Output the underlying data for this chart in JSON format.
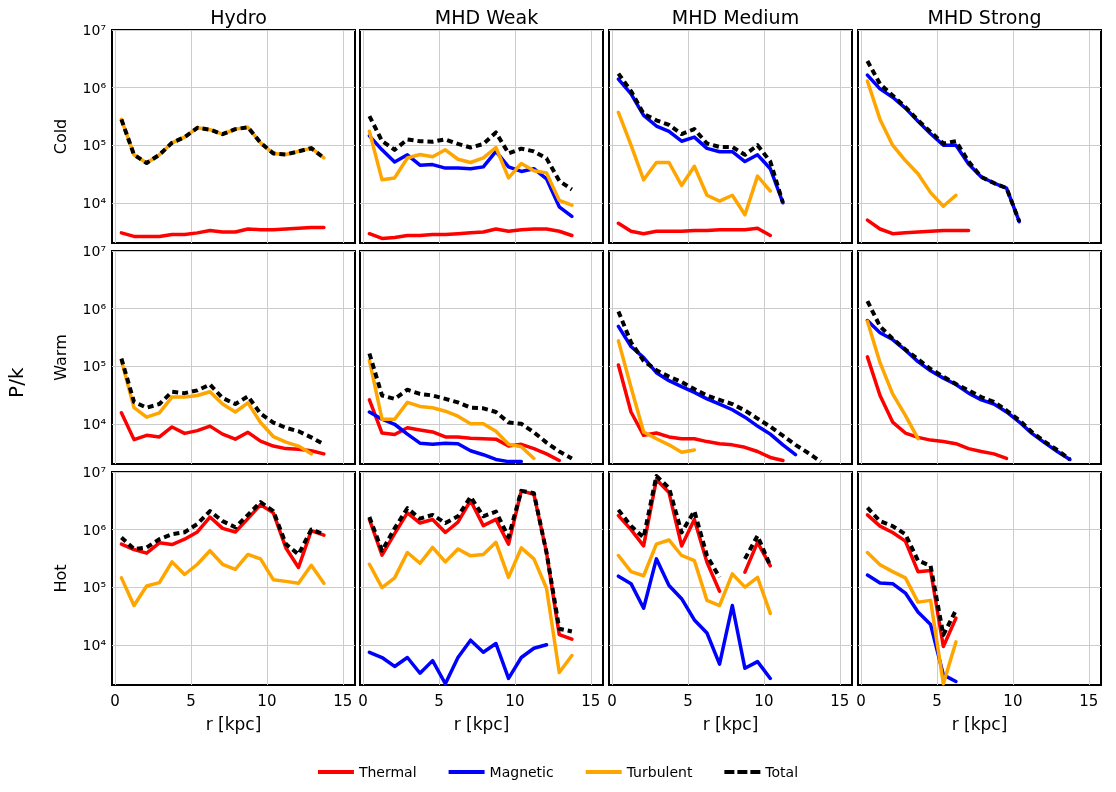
{
  "chart_data": [
    {
      "type": "line",
      "title": "Hydro",
      "ylabel": "Cold",
      "tick_labels": "y",
      "marker": "none",
      "log": true,
      "grid": true,
      "x": [
        0.42,
        1.25,
        2.08,
        2.92,
        3.75,
        4.58,
        5.42,
        6.25,
        7.08,
        7.92,
        8.75,
        9.58,
        10.42,
        11.25,
        12.08,
        12.92,
        13.75
      ],
      "xlim": [
        -0.2,
        15.8
      ],
      "xticks": [
        {
          "value": 0,
          "label": null
        },
        {
          "value": 5,
          "label": null
        },
        {
          "value": 10,
          "label": null
        },
        {
          "value": 15,
          "label": null
        }
      ],
      "ylim": [
        2000,
        10000000
      ],
      "yticks": [
        {
          "value": 10000,
          "label": "10⁴"
        },
        {
          "value": 100000,
          "label": "10⁵"
        },
        {
          "value": 1000000,
          "label": "10⁶"
        },
        {
          "value": 10000000,
          "label": "10⁷"
        }
      ],
      "series": [
        {
          "color": "#ff0000",
          "values": [
            3000,
            2600,
            2600,
            2600,
            2800,
            2800,
            3000,
            3300,
            3100,
            3100,
            3500,
            3400,
            3400,
            3500,
            3600,
            3700,
            3700
          ]
        },
        {
          "color": "#ffa500",
          "values": [
            280000,
            68000,
            49000,
            68000,
            110000,
            138000,
            200000,
            186000,
            155000,
            190000,
            204000,
            110000,
            72000,
            69000,
            78000,
            89000,
            60000
          ]
        },
        {
          "color": "#000000",
          "line_style": "dashed",
          "values": [
            280000,
            68000,
            49000,
            68000,
            110000,
            138000,
            200000,
            186000,
            155000,
            190000,
            204000,
            110000,
            72000,
            69000,
            78000,
            89000,
            60000
          ]
        }
      ]
    },
    {
      "type": "line",
      "title": "MHD Weak",
      "tick_labels": false,
      "marker": "none",
      "log": true,
      "grid": true,
      "x": [
        0.42,
        1.25,
        2.08,
        2.92,
        3.75,
        4.58,
        5.42,
        6.25,
        7.08,
        7.92,
        8.75,
        9.58,
        10.42,
        11.25,
        12.08,
        12.92,
        13.75
      ],
      "xlim": [
        -0.2,
        15.8
      ],
      "xticks": [
        {
          "value": 0,
          "label": null
        },
        {
          "value": 5,
          "label": null
        },
        {
          "value": 10,
          "label": null
        },
        {
          "value": 15,
          "label": null
        }
      ],
      "ylim": [
        2000,
        10000000
      ],
      "yticks": [
        {
          "value": 10000,
          "label": null
        },
        {
          "value": 100000,
          "label": null
        },
        {
          "value": 1000000,
          "label": null
        },
        {
          "value": 10000000,
          "label": null
        }
      ],
      "series": [
        {
          "color": "#ff0000",
          "values": [
            2900,
            2400,
            2500,
            2700,
            2700,
            2800,
            2800,
            2900,
            3000,
            3100,
            3500,
            3200,
            3400,
            3500,
            3500,
            3200,
            2700
          ]
        },
        {
          "color": "#0000ff",
          "values": [
            145000,
            83000,
            51000,
            68000,
            45000,
            46000,
            40000,
            40000,
            39000,
            42000,
            78000,
            42000,
            35000,
            39000,
            26000,
            8500,
            5800
          ]
        },
        {
          "color": "#ffa500",
          "values": [
            174000,
            25000,
            27000,
            60000,
            69000,
            63000,
            83000,
            57000,
            50000,
            60000,
            91000,
            27000,
            48000,
            36000,
            33000,
            11000,
            9100
          ]
        },
        {
          "color": "#000000",
          "line_style": "dashed",
          "values": [
            320000,
            118000,
            83000,
            126000,
            117000,
            115000,
            126000,
            105000,
            91000,
            105000,
            166000,
            72000,
            87000,
            78000,
            59000,
            24000,
            17000
          ]
        }
      ]
    },
    {
      "type": "line",
      "title": "MHD Medium",
      "tick_labels": false,
      "marker": "none",
      "log": true,
      "grid": true,
      "x": [
        0.42,
        1.25,
        2.08,
        2.92,
        3.75,
        4.58,
        5.42,
        6.25,
        7.08,
        7.92,
        8.75,
        9.58,
        10.42,
        11.25
      ],
      "xlim": [
        -0.2,
        15.8
      ],
      "xticks": [
        {
          "value": 0,
          "label": null
        },
        {
          "value": 5,
          "label": null
        },
        {
          "value": 10,
          "label": null
        },
        {
          "value": 15,
          "label": null
        }
      ],
      "ylim": [
        2000,
        10000000
      ],
      "yticks": [
        {
          "value": 10000,
          "label": null
        },
        {
          "value": 100000,
          "label": null
        },
        {
          "value": 1000000,
          "label": null
        },
        {
          "value": 10000000,
          "label": null
        }
      ],
      "series": [
        {
          "color": "#ff0000",
          "values": [
            4400,
            3200,
            2900,
            3200,
            3200,
            3200,
            3300,
            3300,
            3400,
            3400,
            3400,
            3600,
            2700,
            null
          ]
        },
        {
          "color": "#0000ff",
          "values": [
            1400000,
            780000,
            330000,
            215000,
            174000,
            117000,
            138000,
            88000,
            77000,
            77000,
            52000,
            68000,
            39000,
            10000
          ]
        },
        {
          "color": "#ffa500",
          "values": [
            370000,
            100000,
            25000,
            50000,
            50000,
            20000,
            43000,
            13500,
            10700,
            13500,
            6200,
            29000,
            16000,
            null
          ]
        },
        {
          "color": "#000000",
          "line_style": "dashed",
          "values": [
            1750000,
            870000,
            350000,
            270000,
            225000,
            156000,
            190000,
            107000,
            93000,
            93000,
            68000,
            100000,
            52000,
            10000
          ]
        }
      ]
    },
    {
      "type": "line",
      "title": "MHD Strong",
      "tick_labels": false,
      "marker": "none",
      "log": true,
      "grid": true,
      "x": [
        0.42,
        1.25,
        2.08,
        2.92,
        3.75,
        4.58,
        5.42,
        6.25,
        7.08,
        7.92,
        8.75,
        9.58,
        10.42
      ],
      "xlim": [
        -0.2,
        15.8
      ],
      "xticks": [
        {
          "value": 0,
          "label": null
        },
        {
          "value": 5,
          "label": null
        },
        {
          "value": 10,
          "label": null
        },
        {
          "value": 15,
          "label": null
        }
      ],
      "ylim": [
        2000,
        10000000
      ],
      "yticks": [
        {
          "value": 10000,
          "label": null
        },
        {
          "value": 100000,
          "label": null
        },
        {
          "value": 1000000,
          "label": null
        },
        {
          "value": 10000000,
          "label": null
        }
      ],
      "series": [
        {
          "color": "#ff0000",
          "values": [
            5000,
            3500,
            2900,
            3000,
            3100,
            3200,
            3300,
            3300,
            3300,
            null,
            null,
            null,
            null
          ]
        },
        {
          "color": "#0000ff",
          "values": [
            1650000,
            950000,
            680000,
            440000,
            260000,
            158000,
            100000,
            100000,
            47000,
            28000,
            22000,
            18000,
            4700
          ]
        },
        {
          "color": "#ffa500",
          "values": [
            1300000,
            280000,
            100000,
            54000,
            32000,
            15000,
            8700,
            13500,
            null,
            null,
            null,
            null,
            null
          ]
        },
        {
          "color": "#000000",
          "line_style": "dashed",
          "values": [
            2900000,
            1150000,
            730000,
            460000,
            270000,
            170000,
            107000,
            117000,
            52000,
            28000,
            22000,
            18000,
            4700
          ]
        }
      ]
    },
    {
      "type": "line",
      "ylabel": "Warm",
      "annotations": [
        "P/k"
      ],
      "tick_labels": "y",
      "marker": "none",
      "log": true,
      "grid": true,
      "x": [
        0.42,
        1.25,
        2.08,
        2.92,
        3.75,
        4.58,
        5.42,
        6.25,
        7.08,
        7.92,
        8.75,
        9.58,
        10.42,
        11.25,
        12.08,
        12.92,
        13.75
      ],
      "xlim": [
        -0.2,
        15.8
      ],
      "xticks": [
        {
          "value": 0,
          "label": null
        },
        {
          "value": 5,
          "label": null
        },
        {
          "value": 10,
          "label": null
        },
        {
          "value": 15,
          "label": null
        }
      ],
      "ylim": [
        2000,
        10000000
      ],
      "yticks": [
        {
          "value": 10000,
          "label": "10⁴"
        },
        {
          "value": 100000,
          "label": "10⁵"
        },
        {
          "value": 1000000,
          "label": "10⁶"
        },
        {
          "value": 10000000,
          "label": "10⁷"
        }
      ],
      "series": [
        {
          "color": "#ff0000",
          "values": [
            15500,
            5300,
            6300,
            5900,
            8800,
            6800,
            7600,
            9100,
            6600,
            5400,
            7100,
            5000,
            4100,
            3700,
            3600,
            3400,
            3000
          ]
        },
        {
          "color": "#ffa500",
          "values": [
            126000,
            19000,
            13000,
            15500,
            29000,
            29000,
            31000,
            36000,
            22000,
            16000,
            23000,
            10500,
            6000,
            4800,
            4100,
            3000,
            null
          ]
        },
        {
          "color": "#000000",
          "line_style": "dashed",
          "values": [
            135000,
            24000,
            19000,
            22000,
            36000,
            34000,
            38000,
            48000,
            28000,
            22000,
            30000,
            15000,
            10500,
            8500,
            7400,
            5800,
            4400
          ]
        }
      ]
    },
    {
      "type": "line",
      "tick_labels": false,
      "marker": "none",
      "log": true,
      "grid": true,
      "x": [
        0.42,
        1.25,
        2.08,
        2.92,
        3.75,
        4.58,
        5.42,
        6.25,
        7.08,
        7.92,
        8.75,
        9.58,
        10.42,
        11.25,
        12.08,
        12.92,
        13.75
      ],
      "xlim": [
        -0.2,
        15.8
      ],
      "xticks": [
        {
          "value": 0,
          "label": null
        },
        {
          "value": 5,
          "label": null
        },
        {
          "value": 10,
          "label": null
        },
        {
          "value": 15,
          "label": null
        }
      ],
      "ylim": [
        2000,
        10000000
      ],
      "yticks": [
        {
          "value": 10000,
          "label": null
        },
        {
          "value": 100000,
          "label": null
        },
        {
          "value": 1000000,
          "label": null
        },
        {
          "value": 10000000,
          "label": null
        }
      ],
      "series": [
        {
          "color": "#ff0000",
          "values": [
            26000,
            6900,
            6500,
            8500,
            7800,
            7200,
            5900,
            5900,
            5600,
            5500,
            5400,
            4100,
            4400,
            3700,
            3000,
            2300,
            null
          ]
        },
        {
          "color": "#0000ff",
          "values": [
            16000,
            12000,
            9800,
            6600,
            4600,
            4400,
            4600,
            4500,
            3400,
            2900,
            2400,
            2200,
            2200,
            null,
            null,
            null,
            null
          ]
        },
        {
          "color": "#ffa500",
          "values": [
            126000,
            12000,
            12000,
            23500,
            20000,
            19000,
            16500,
            13500,
            10000,
            10000,
            7400,
            4400,
            4000,
            2500,
            null,
            null,
            null
          ]
        },
        {
          "color": "#000000",
          "line_style": "dashed",
          "values": [
            166000,
            31000,
            27000,
            39000,
            33000,
            31000,
            27000,
            23500,
            19000,
            18500,
            16000,
            10500,
            10000,
            7100,
            4700,
            3300,
            2500
          ]
        }
      ]
    },
    {
      "type": "line",
      "tick_labels": false,
      "marker": "none",
      "log": true,
      "grid": true,
      "x": [
        0.42,
        1.25,
        2.08,
        2.92,
        3.75,
        4.58,
        5.42,
        6.25,
        7.08,
        7.92,
        8.75,
        9.58,
        10.42,
        11.25,
        12.08,
        12.92,
        13.75
      ],
      "xlim": [
        -0.2,
        15.8
      ],
      "xticks": [
        {
          "value": 0,
          "label": null
        },
        {
          "value": 5,
          "label": null
        },
        {
          "value": 10,
          "label": null
        },
        {
          "value": 15,
          "label": null
        }
      ],
      "ylim": [
        2000,
        10000000
      ],
      "yticks": [
        {
          "value": 10000,
          "label": null
        },
        {
          "value": 100000,
          "label": null
        },
        {
          "value": 1000000,
          "label": null
        },
        {
          "value": 10000000,
          "label": null
        }
      ],
      "series": [
        {
          "color": "#ff0000",
          "values": [
            105000,
            16000,
            6300,
            6900,
            5900,
            5500,
            5500,
            4900,
            4500,
            4300,
            3900,
            3300,
            2600,
            2300,
            null,
            null,
            null
          ]
        },
        {
          "color": "#0000ff",
          "values": [
            490000,
            220000,
            141000,
            77000,
            56000,
            44000,
            35000,
            27000,
            22000,
            17500,
            13000,
            9100,
            6600,
            4300,
            2900,
            null,
            null
          ]
        },
        {
          "color": "#ffa500",
          "values": [
            275000,
            43000,
            7200,
            5500,
            4300,
            3200,
            3500,
            null,
            null,
            null,
            null,
            null,
            null,
            null,
            null,
            null,
            null
          ]
        },
        {
          "color": "#000000",
          "line_style": "dashed",
          "values": [
            890000,
            260000,
            124000,
            85000,
            66000,
            53000,
            40000,
            31000,
            26000,
            22000,
            17000,
            12300,
            8900,
            6200,
            4300,
            3100,
            2200
          ]
        }
      ]
    },
    {
      "type": "line",
      "tick_labels": false,
      "marker": "none",
      "log": true,
      "grid": true,
      "x": [
        0.42,
        1.25,
        2.08,
        2.92,
        3.75,
        4.58,
        5.42,
        6.25,
        7.08,
        7.92,
        8.75,
        9.58,
        10.42,
        11.25,
        12.08,
        12.92,
        13.75
      ],
      "xlim": [
        -0.2,
        15.8
      ],
      "xticks": [
        {
          "value": 0,
          "label": null
        },
        {
          "value": 5,
          "label": null
        },
        {
          "value": 10,
          "label": null
        },
        {
          "value": 15,
          "label": null
        }
      ],
      "ylim": [
        2000,
        10000000
      ],
      "yticks": [
        {
          "value": 10000,
          "label": null
        },
        {
          "value": 100000,
          "label": null
        },
        {
          "value": 1000000,
          "label": null
        },
        {
          "value": 10000000,
          "label": null
        }
      ],
      "series": [
        {
          "color": "#ff0000",
          "values": [
            145000,
            31000,
            10700,
            6900,
            5800,
            5200,
            4900,
            4500,
            3700,
            3300,
            3000,
            2500,
            null,
            null,
            null,
            null,
            null
          ]
        },
        {
          "color": "#0000ff",
          "values": [
            620000,
            380000,
            290000,
            190000,
            120000,
            83000,
            62000,
            48000,
            34000,
            26000,
            22000,
            16000,
            10700,
            6800,
            4700,
            3300,
            2400
          ]
        },
        {
          "color": "#ffa500",
          "values": [
            600000,
            115000,
            33000,
            14000,
            5500,
            null,
            null,
            null,
            null,
            null,
            null,
            null,
            null,
            null,
            null,
            null,
            null
          ]
        },
        {
          "color": "#000000",
          "line_style": "dashed",
          "values": [
            1350000,
            490000,
            300000,
            195000,
            132000,
            89000,
            66000,
            49000,
            38000,
            29000,
            24000,
            17000,
            11500,
            7200,
            4900,
            3500,
            2400
          ]
        }
      ]
    },
    {
      "type": "line",
      "ylabel": "Hot",
      "xlabel": "r [kpc]",
      "marker": "none",
      "log": true,
      "grid": true,
      "x": [
        0.42,
        1.25,
        2.08,
        2.92,
        3.75,
        4.58,
        5.42,
        6.25,
        7.08,
        7.92,
        8.75,
        9.58,
        10.42,
        11.25,
        12.08,
        12.92,
        13.75
      ],
      "xlim": [
        -0.2,
        15.8
      ],
      "xticks": [
        0,
        5,
        10,
        15
      ],
      "ylim": [
        2000,
        10000000
      ],
      "yticks": [
        {
          "value": 10000,
          "label": "10⁴"
        },
        {
          "value": 100000,
          "label": "10⁵"
        },
        {
          "value": 1000000,
          "label": "10⁶"
        },
        {
          "value": 10000000,
          "label": "10⁷"
        }
      ],
      "series": [
        {
          "color": "#ff0000",
          "values": [
            560000,
            450000,
            390000,
            590000,
            550000,
            680000,
            910000,
            1650000,
            1050000,
            910000,
            1550000,
            2700000,
            1950000,
            480000,
            220000,
            960000,
            800000
          ]
        },
        {
          "color": "#ffa500",
          "values": [
            145000,
            48000,
            105000,
            120000,
            275000,
            166000,
            250000,
            430000,
            250000,
            204000,
            370000,
            310000,
            135000,
            126000,
            117000,
            240000,
            117000
          ]
        },
        {
          "color": "#000000",
          "line_style": "dashed",
          "values": [
            730000,
            460000,
            490000,
            680000,
            830000,
            900000,
            1250000,
            2100000,
            1400000,
            1100000,
            1800000,
            3000000,
            2100000,
            560000,
            370000,
            1000000,
            830000
          ]
        }
      ]
    },
    {
      "type": "line",
      "xlabel": "r [kpc]",
      "tick_labels": "x",
      "legend": "bottom",
      "marker": "none",
      "log": true,
      "grid": true,
      "x": [
        0.42,
        1.25,
        2.08,
        2.92,
        3.75,
        4.58,
        5.42,
        6.25,
        7.08,
        7.92,
        8.75,
        9.58,
        10.42,
        11.25,
        12.08,
        12.92,
        13.75
      ],
      "xlim": [
        -0.2,
        15.8
      ],
      "xticks": [
        0,
        5,
        10,
        15
      ],
      "ylim": [
        2000,
        10000000
      ],
      "yticks": [
        {
          "value": 10000,
          "label": null
        },
        {
          "value": 100000,
          "label": null
        },
        {
          "value": 1000000,
          "label": null
        },
        {
          "value": 10000000,
          "label": null
        }
      ],
      "series": [
        {
          "name": "Thermal",
          "color": "#ff0000",
          "values": [
            1500000,
            360000,
            850000,
            1950000,
            1300000,
            1500000,
            890000,
            1350000,
            3200000,
            1170000,
            1500000,
            560000,
            4700000,
            4100000,
            400000,
            15000,
            12500
          ]
        },
        {
          "name": "Magnetic",
          "color": "#0000ff",
          "values": [
            7400,
            6000,
            4200,
            6000,
            3200,
            5300,
            2100,
            6000,
            12000,
            7400,
            10500,
            2600,
            6000,
            8700,
            10000,
            null,
            null
          ]
        },
        {
          "name": "Turbulent",
          "color": "#ffa500",
          "values": [
            250000,
            98000,
            145000,
            400000,
            260000,
            490000,
            275000,
            460000,
            350000,
            370000,
            600000,
            148000,
            480000,
            310000,
            96000,
            3300,
            6500
          ]
        },
        {
          "name": "Total",
          "color": "#000000",
          "line_style": "dashed",
          "values": [
            1650000,
            430000,
            1050000,
            2350000,
            1550000,
            1800000,
            1300000,
            1700000,
            3700000,
            1700000,
            2050000,
            740000,
            4700000,
            4300000,
            400000,
            19000,
            17000
          ]
        }
      ]
    },
    {
      "type": "line",
      "xlabel": "r [kpc]",
      "tick_labels": "x",
      "marker": "none",
      "log": true,
      "grid": true,
      "x": [
        0.42,
        1.25,
        2.08,
        2.92,
        3.75,
        4.58,
        5.42,
        6.25,
        7.08,
        7.92,
        8.75,
        9.58,
        10.42
      ],
      "xlim": [
        -0.2,
        15.8
      ],
      "xticks": [
        0,
        5,
        10,
        15
      ],
      "ylim": [
        2000,
        10000000
      ],
      "yticks": [
        {
          "value": 10000,
          "label": null
        },
        {
          "value": 100000,
          "label": null
        },
        {
          "value": 1000000,
          "label": null
        },
        {
          "value": 10000000,
          "label": null
        }
      ],
      "series": [
        {
          "color": "#ff0000",
          "values": [
            1750000,
            1000000,
            520000,
            7400000,
            4400000,
            520000,
            1500000,
            270000,
            85000,
            null,
            182000,
            600000,
            235000
          ]
        },
        {
          "color": "#0000ff",
          "values": [
            155000,
            115000,
            43000,
            310000,
            107000,
            63000,
            27000,
            16000,
            4600,
            48000,
            3900,
            5100,
            2600
          ]
        },
        {
          "color": "#ffa500",
          "values": [
            355000,
            186000,
            158000,
            560000,
            660000,
            355000,
            290000,
            59000,
            48000,
            170000,
            100000,
            148000,
            35000
          ]
        },
        {
          "color": "#000000",
          "line_style": "dashed",
          "values": [
            2200000,
            1150000,
            730000,
            8500000,
            5300000,
            890000,
            2100000,
            350000,
            148000,
            null,
            310000,
            780000,
            235000
          ]
        }
      ]
    },
    {
      "type": "line",
      "xlabel": "r [kpc]",
      "tick_labels": "x",
      "marker": "none",
      "log": true,
      "grid": true,
      "x": [
        0.42,
        1.25,
        2.08,
        2.92,
        3.75,
        4.58,
        5.42,
        6.25
      ],
      "xlim": [
        -0.2,
        15.8
      ],
      "xticks": [
        0,
        5,
        10,
        15
      ],
      "ylim": [
        2000,
        10000000
      ],
      "yticks": [
        {
          "value": 10000,
          "label": null
        },
        {
          "value": 100000,
          "label": null
        },
        {
          "value": 1000000,
          "label": null
        },
        {
          "value": 10000000,
          "label": null
        }
      ],
      "series": [
        {
          "color": "#ff0000",
          "values": [
            1800000,
            1150000,
            890000,
            630000,
            186000,
            195000,
            9300,
            29000
          ]
        },
        {
          "color": "#0000ff",
          "values": [
            162000,
            118000,
            115000,
            79000,
            37000,
            22500,
            3000,
            2300
          ]
        },
        {
          "color": "#ffa500",
          "values": [
            400000,
            245000,
            186000,
            145000,
            55000,
            59000,
            2100,
            11200
          ]
        },
        {
          "color": "#000000",
          "line_style": "dashed",
          "values": [
            2400000,
            1400000,
            1150000,
            830000,
            290000,
            235000,
            14800,
            40000
          ]
        }
      ]
    }
  ]
}
